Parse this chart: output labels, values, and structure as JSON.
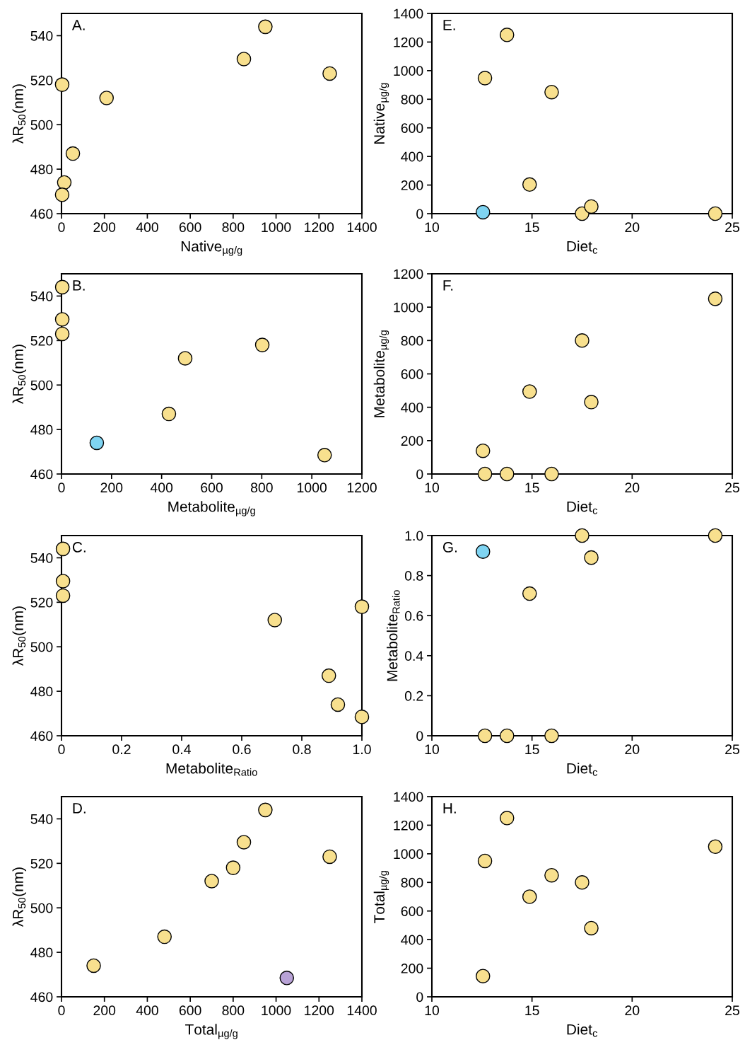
{
  "chart_data": [
    {
      "type": "scatter",
      "annotations": [
        "A."
      ],
      "xlabel": "Native$_{µg/g}$",
      "ylabel": "λR$_{50}$(nm)",
      "xlim": [
        0,
        1400
      ],
      "xticks": [
        0,
        200,
        400,
        600,
        800,
        1000,
        1200,
        1400
      ],
      "ylim": [
        460,
        550
      ],
      "yticks": [
        460,
        480,
        500,
        520,
        540
      ],
      "marker": "circle",
      "x": [
        3,
        210,
        53,
        13,
        3,
        850,
        950,
        1250
      ],
      "values": [
        518,
        512,
        487,
        474,
        468.5,
        529.5,
        544,
        523
      ],
      "colors": [
        "#f8e08e",
        "#f8e08e",
        "#f8e08e",
        "#f8e08e",
        "#f8e08e",
        "#f8e08e",
        "#f8e08e",
        "#f8e08e"
      ]
    },
    {
      "type": "scatter",
      "annotations": [
        "E."
      ],
      "xlabel": "Diet$_{c}$",
      "ylabel": "Native$_{µg/g}$",
      "xlim": [
        10,
        25
      ],
      "xticks": [
        10,
        15,
        20,
        25
      ],
      "ylim": [
        0,
        1400
      ],
      "yticks": [
        0,
        200,
        400,
        600,
        800,
        1000,
        1200,
        1400
      ],
      "marker": "circle",
      "x": [
        12.65,
        13.75,
        15.98,
        14.88,
        12.55,
        17.5,
        17.96,
        24.15
      ],
      "values": [
        948,
        1250,
        850,
        204,
        10,
        0,
        50,
        0
      ],
      "colors": [
        "#f8e08e",
        "#f8e08e",
        "#f8e08e",
        "#f8e08e",
        "#7fd4f2",
        "#f8e08e",
        "#f8e08e",
        "#f8e08e"
      ]
    },
    {
      "type": "scatter",
      "annotations": [
        "B."
      ],
      "xlabel": "Metabolite$_{µg/g}$",
      "ylabel": "λR$_{50}$(nm)",
      "xlim": [
        0,
        1200
      ],
      "xticks": [
        0,
        200,
        400,
        600,
        800,
        1000,
        1200
      ],
      "ylim": [
        460,
        550
      ],
      "yticks": [
        460,
        480,
        500,
        520,
        540
      ],
      "marker": "circle",
      "x": [
        3,
        3,
        3,
        494,
        429,
        141,
        802,
        1051
      ],
      "values": [
        544,
        529.5,
        523,
        512,
        487,
        474,
        518,
        468.5
      ],
      "colors": [
        "#f8e08e",
        "#f8e08e",
        "#f8e08e",
        "#f8e08e",
        "#f8e08e",
        "#7fd4f2",
        "#f8e08e",
        "#f8e08e"
      ]
    },
    {
      "type": "scatter",
      "annotations": [
        "F."
      ],
      "xlabel": "Diet$_{c}$",
      "ylabel": "Metabolite$_{µg/g}$",
      "xlim": [
        10,
        25
      ],
      "xticks": [
        10,
        15,
        20,
        25
      ],
      "ylim": [
        0,
        1200
      ],
      "yticks": [
        0,
        200,
        400,
        600,
        800,
        1000,
        1200
      ],
      "marker": "circle",
      "x": [
        12.55,
        12.65,
        13.75,
        15.98,
        14.88,
        17.5,
        17.96,
        24.15
      ],
      "values": [
        139,
        0,
        0,
        0,
        494,
        800,
        431,
        1050
      ],
      "colors": [
        "#f8e08e",
        "#f8e08e",
        "#f8e08e",
        "#f8e08e",
        "#f8e08e",
        "#f8e08e",
        "#f8e08e",
        "#f8e08e"
      ]
    },
    {
      "type": "scatter",
      "annotations": [
        "C."
      ],
      "xlabel": "Metabolite$_{Ratio}$",
      "ylabel": "λR$_{50}$(nm)",
      "xlim": [
        0,
        1.0
      ],
      "xticks": [
        0,
        0.2,
        0.4,
        0.6,
        0.8,
        {
          "value": 1,
          "label": "1.0"
        }
      ],
      "ylim": [
        460,
        550
      ],
      "yticks": [
        460,
        480,
        500,
        520,
        540
      ],
      "marker": "circle",
      "x": [
        0.005,
        0.005,
        0.005,
        0.71,
        0.89,
        0.92,
        1.0,
        1.0
      ],
      "values": [
        544,
        529.5,
        523,
        512,
        487,
        474,
        518,
        468.5
      ],
      "colors": [
        "#f8e08e",
        "#f8e08e",
        "#f8e08e",
        "#f8e08e",
        "#f8e08e",
        "#f8e08e",
        "#f8e08e",
        "#f8e08e"
      ]
    },
    {
      "type": "scatter",
      "annotations": [
        "G."
      ],
      "xlabel": "Diet$_{c}$",
      "ylabel": "Metabolite$_{Ratio}$",
      "xlim": [
        10,
        25
      ],
      "xticks": [
        10,
        15,
        20,
        25
      ],
      "ylim": [
        0,
        1.0
      ],
      "yticks": [
        0,
        0.2,
        0.4,
        0.6,
        0.8,
        {
          "value": 1,
          "label": "1.0"
        }
      ],
      "marker": "circle",
      "x": [
        12.55,
        12.65,
        13.75,
        15.98,
        14.88,
        17.5,
        17.96,
        24.15
      ],
      "values": [
        0.92,
        0,
        0,
        0,
        0.71,
        1.0,
        0.89,
        1.0
      ],
      "colors": [
        "#7fd4f2",
        "#f8e08e",
        "#f8e08e",
        "#f8e08e",
        "#f8e08e",
        "#f8e08e",
        "#f8e08e",
        "#f8e08e"
      ]
    },
    {
      "type": "scatter",
      "annotations": [
        "D."
      ],
      "xlabel": "Total$_{µg/g}$",
      "ylabel": "λR$_{50}$(nm)",
      "xlim": [
        0,
        1400
      ],
      "xticks": [
        0,
        200,
        400,
        600,
        800,
        1000,
        1200,
        1400
      ],
      "ylim": [
        460,
        550
      ],
      "yticks": [
        460,
        480,
        500,
        520,
        540
      ],
      "marker": "circle",
      "x": [
        150,
        480,
        700,
        800,
        850,
        950,
        1250,
        1050
      ],
      "values": [
        474,
        487,
        512,
        518,
        529.5,
        544,
        523,
        468.5
      ],
      "colors": [
        "#f8e08e",
        "#f8e08e",
        "#f8e08e",
        "#f8e08e",
        "#f8e08e",
        "#f8e08e",
        "#f8e08e",
        "#b8a2d6"
      ]
    },
    {
      "type": "scatter",
      "annotations": [
        "H."
      ],
      "xlabel": "Diet$_{c}$",
      "ylabel": "Total$_{µg/g}$",
      "xlim": [
        10,
        25
      ],
      "xticks": [
        10,
        15,
        20,
        25
      ],
      "ylim": [
        0,
        1400
      ],
      "yticks": [
        0,
        200,
        400,
        600,
        800,
        1000,
        1200,
        1400
      ],
      "marker": "circle",
      "x": [
        12.55,
        12.65,
        13.75,
        15.98,
        14.88,
        17.5,
        17.96,
        24.15
      ],
      "values": [
        145,
        950,
        1250,
        850,
        700,
        800,
        480,
        1050
      ],
      "colors": [
        "#f8e08e",
        "#f8e08e",
        "#f8e08e",
        "#f8e08e",
        "#f8e08e",
        "#f8e08e",
        "#f8e08e",
        "#f8e08e"
      ]
    }
  ]
}
